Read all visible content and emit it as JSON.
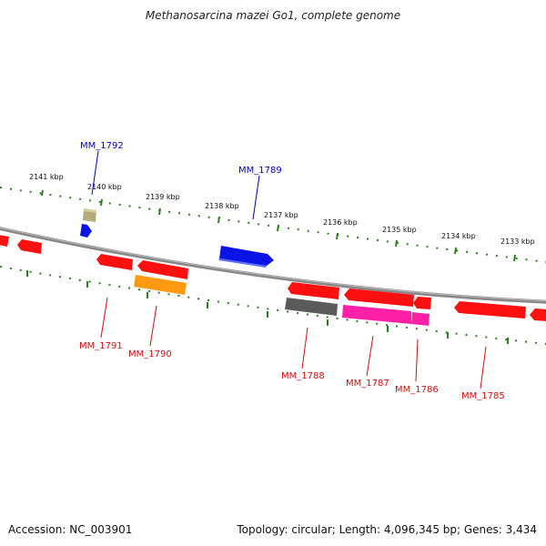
{
  "title": "Methanosarcina mazei Go1, complete genome",
  "accession": "Accession: NC_003901",
  "summary": "Topology: circular; Length: 4,096,345 bp; Genes: 3,434",
  "colors": {
    "backbone": "#888888",
    "ticks": "#2e7d1e",
    "label_blue": "#0000c8",
    "label_red": "#d01010",
    "gene_red": "#ff1010",
    "gene_blue": "#0a14e6",
    "gene_orange": "#ff9a10",
    "gene_khaki": "#b5ab7a",
    "gene_gray": "#5a5a5a",
    "gene_magenta": "#ff20a8"
  },
  "scale_labels": [
    "2141 kbp",
    "2140 kbp",
    "2139 kbp",
    "2138 kbp",
    "2137 kbp",
    "2136 kbp",
    "2135 kbp",
    "2134 kbp",
    "2133 kbp"
  ],
  "gene_labels": [
    {
      "name": "MM_1792",
      "color": "blue"
    },
    {
      "name": "MM_1789",
      "color": "blue"
    },
    {
      "name": "MM_1791",
      "color": "red"
    },
    {
      "name": "MM_1790",
      "color": "red"
    },
    {
      "name": "MM_1788",
      "color": "red"
    },
    {
      "name": "MM_1787",
      "color": "red"
    },
    {
      "name": "MM_1786",
      "color": "red"
    },
    {
      "name": "MM_1785",
      "color": "red"
    }
  ]
}
